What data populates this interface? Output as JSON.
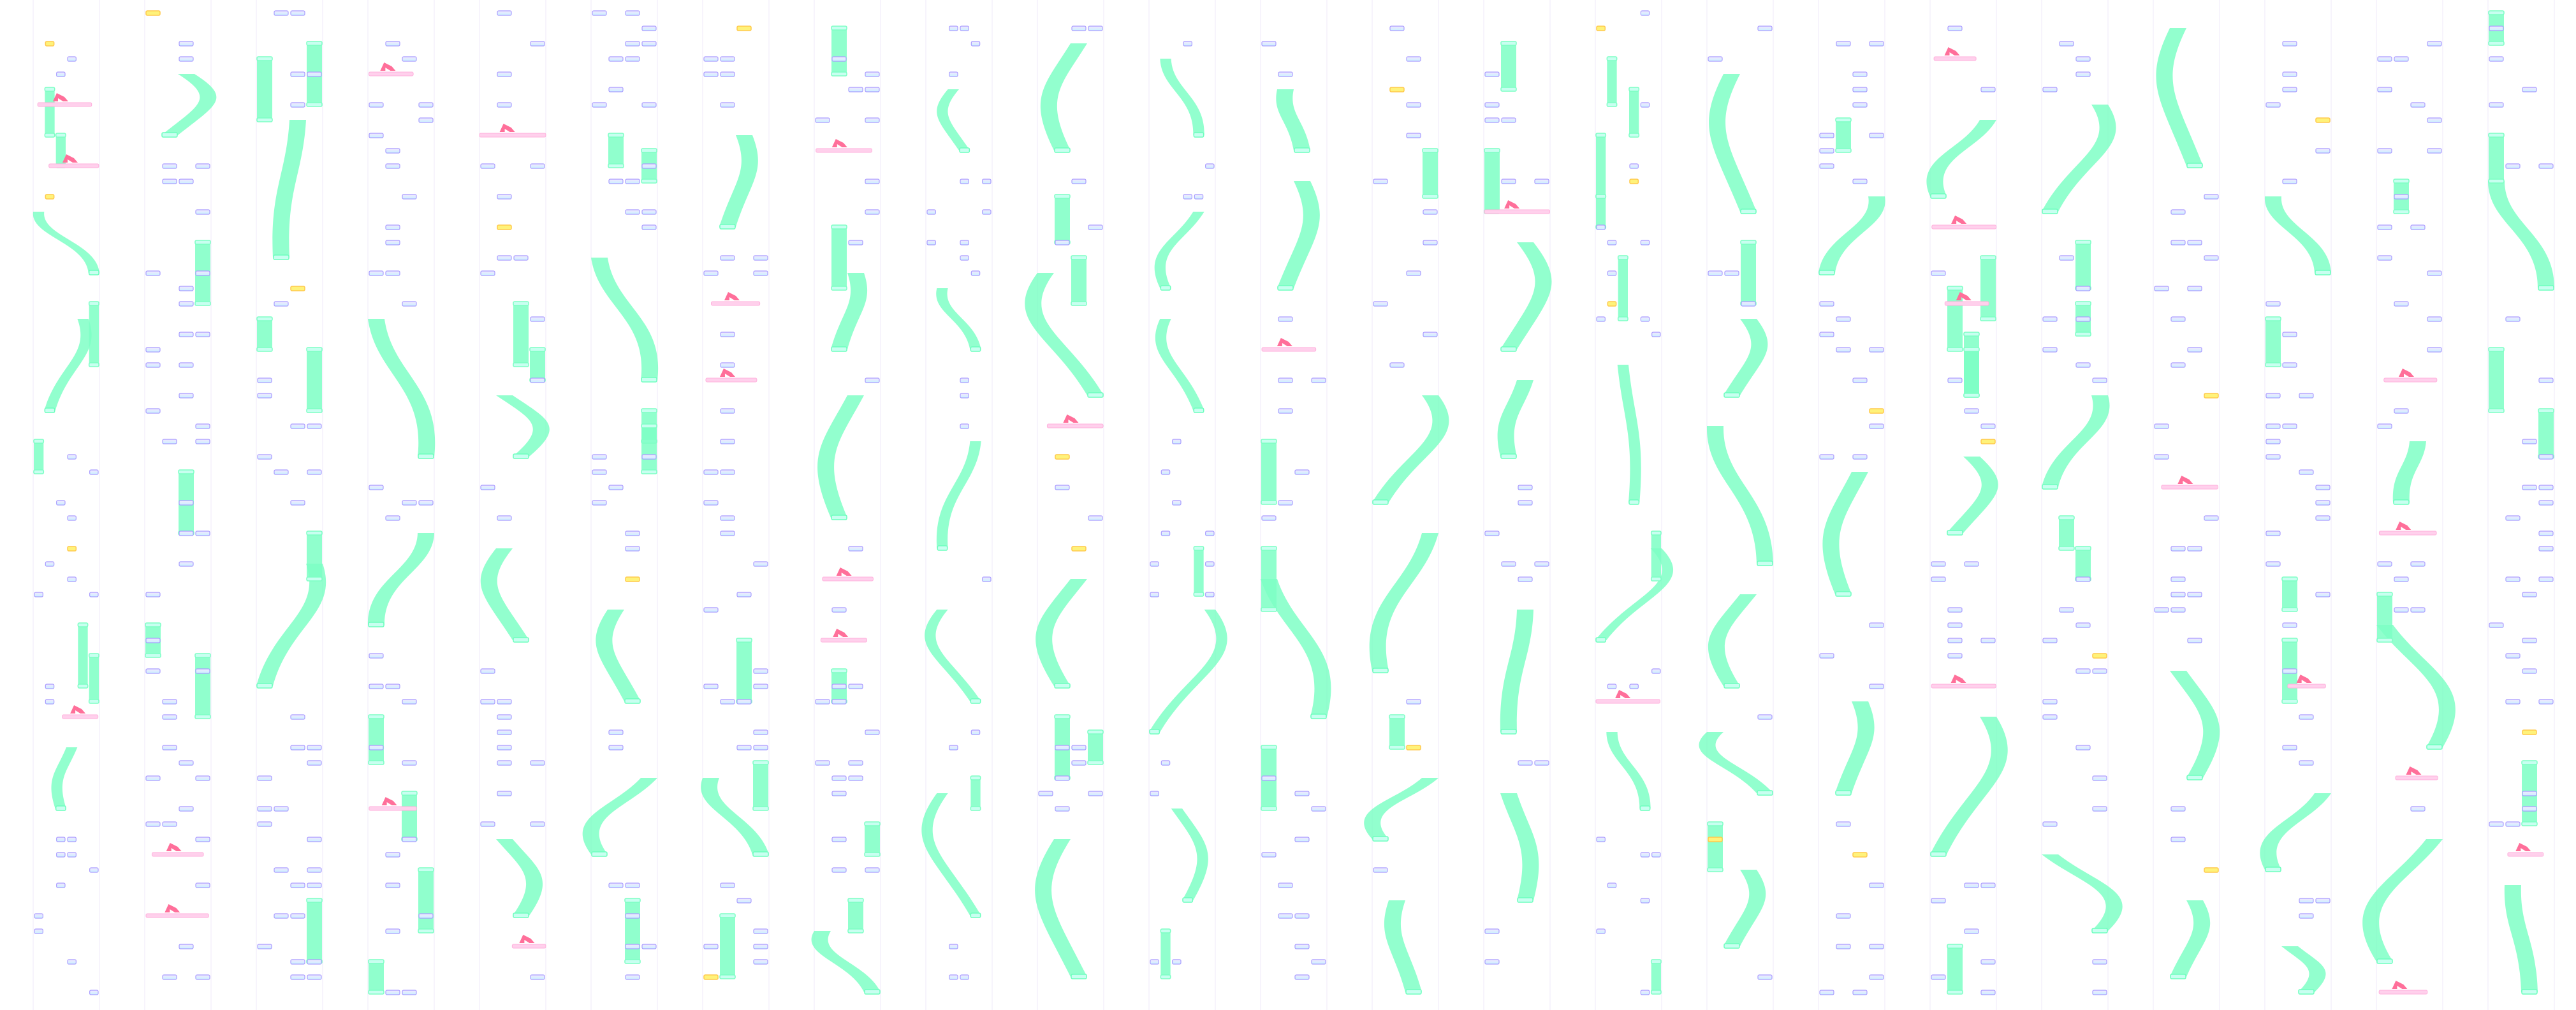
{
  "colors": {
    "background": "#ffffff",
    "lane_guide": "#efe9f8",
    "tap_border": "#a99cff",
    "tap_fill_top": "#f3e6ff",
    "tap_fill_bottom": "#c9f3ff",
    "hold_fill": "#7dffc4",
    "hold_cap": "#c8fff0",
    "slide_fill": "#6dffbd",
    "break_border": "#ffc94d",
    "break_fill": "#fff27a",
    "flick_fill": "#ff6f9a",
    "flick_bar": "#ffd0ec"
  },
  "note_types": [
    "tap",
    "hold",
    "slide",
    "break",
    "flick"
  ]
}
